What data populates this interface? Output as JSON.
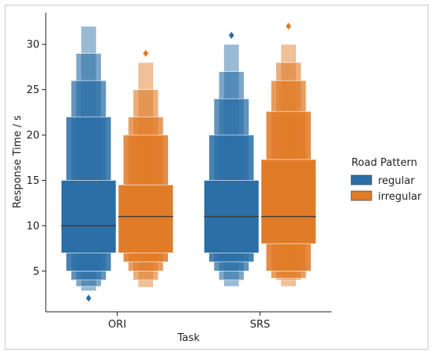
{
  "chart_data": {
    "type": "boxen",
    "xlabel": "Task",
    "ylabel": "Response Time / s",
    "categories": [
      "ORI",
      "SRS"
    ],
    "ylim": [
      0.5,
      33.5
    ],
    "yticks": [
      5,
      10,
      15,
      20,
      25,
      30
    ],
    "legend": {
      "title": "Road Pattern",
      "placement": "right"
    },
    "series": [
      {
        "name": "regular",
        "color": "#2b6fa6",
        "groups": [
          {
            "category": "ORI",
            "median": 10,
            "boxes": [
              [
                7,
                15
              ],
              [
                5,
                22
              ],
              [
                4,
                26
              ],
              [
                3.3,
                29
              ],
              [
                2.8,
                32
              ]
            ],
            "outliers": [
              2
            ]
          },
          {
            "category": "SRS",
            "median": 11,
            "boxes": [
              [
                7,
                15
              ],
              [
                6,
                20
              ],
              [
                5,
                24
              ],
              [
                4,
                27
              ],
              [
                3.3,
                30
              ]
            ],
            "outliers": [
              31
            ]
          }
        ]
      },
      {
        "name": "irregular",
        "color": "#e07b28",
        "groups": [
          {
            "category": "ORI",
            "median": 11,
            "boxes": [
              [
                7,
                14.5
              ],
              [
                6,
                20
              ],
              [
                5,
                22
              ],
              [
                4,
                25
              ],
              [
                3.2,
                28
              ]
            ],
            "outliers": [
              29
            ]
          },
          {
            "category": "SRS",
            "median": 11,
            "boxes": [
              [
                8,
                17.3
              ],
              [
                5,
                22.6
              ],
              [
                4.2,
                26
              ],
              [
                4,
                28
              ],
              [
                3.3,
                30
              ]
            ],
            "outliers": [
              32
            ]
          }
        ]
      }
    ]
  }
}
